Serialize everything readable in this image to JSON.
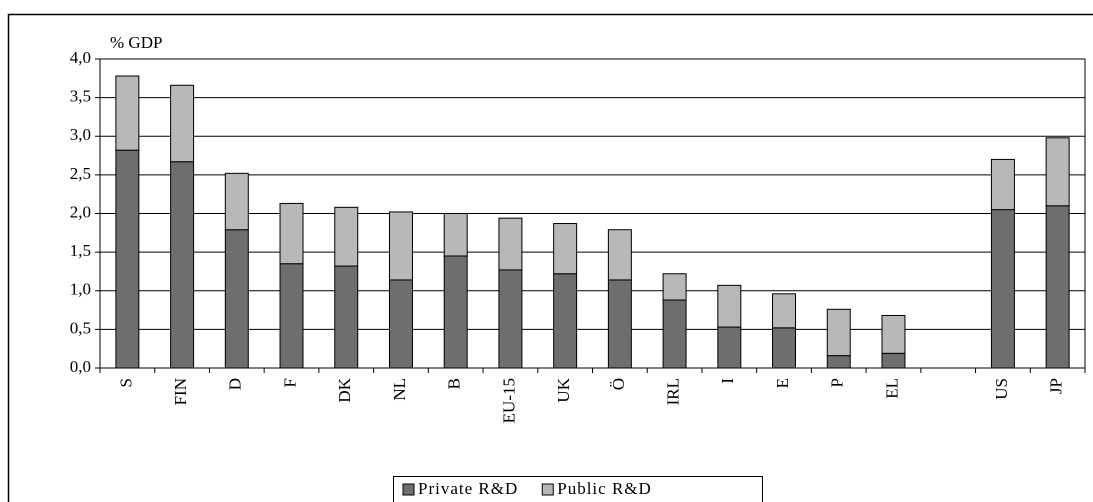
{
  "chart_data": {
    "type": "stacked_bar",
    "y_label": "% GDP",
    "categories": [
      "S",
      "FIN",
      "D",
      "F",
      "DK",
      "NL",
      "B",
      "EU-15",
      "UK",
      "Ö",
      "IRL",
      "I",
      "E",
      "P",
      "EL",
      null,
      "US",
      "JP"
    ],
    "series": [
      {
        "name": "Private R&D",
        "color": "#6e6e6e",
        "values": [
          2.82,
          2.67,
          1.79,
          1.35,
          1.32,
          1.14,
          1.45,
          1.27,
          1.22,
          1.14,
          0.88,
          0.53,
          0.52,
          0.16,
          0.19,
          null,
          2.05,
          2.1
        ]
      },
      {
        "name": "Public R&D",
        "color": "#b8b8b8",
        "values": [
          0.96,
          0.99,
          0.73,
          0.78,
          0.76,
          0.88,
          0.55,
          0.67,
          0.65,
          0.65,
          0.34,
          0.54,
          0.44,
          0.6,
          0.49,
          null,
          0.65,
          0.88
        ]
      }
    ],
    "ylim": [
      0,
      4
    ],
    "yticks": [
      {
        "value": 0,
        "label": "0,0"
      },
      {
        "value": 0.5,
        "label": "0,5"
      },
      {
        "value": 1,
        "label": "1,0"
      },
      {
        "value": 1.5,
        "label": "1,5"
      },
      {
        "value": 2,
        "label": "2,0"
      },
      {
        "value": 2.5,
        "label": "2,5"
      },
      {
        "value": 3,
        "label": "3,0"
      },
      {
        "value": 3.5,
        "label": "3,5"
      },
      {
        "value": 4,
        "label": "4,0"
      }
    ],
    "grid": true,
    "legend": "bottom"
  }
}
